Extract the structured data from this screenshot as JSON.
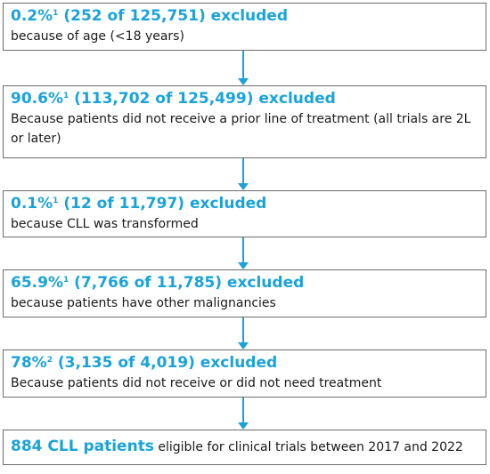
{
  "steps": [
    {
      "headline": "0.2%",
      "sup": "1",
      "headline_rest": " (252 of 125,751) excluded",
      "description": "because of age (<18 years)"
    },
    {
      "headline": "90.6%",
      "sup": "1",
      "headline_rest": " (113,702 of 125,499) excluded",
      "description": "Because patients did not receive a prior line of treatment (all trials are 2L or later)"
    },
    {
      "headline": "0.1%",
      "sup": "1",
      "headline_rest": " (12 of 11,797) excluded",
      "description": "because CLL was transformed"
    },
    {
      "headline": "65.9%",
      "sup": "1",
      "headline_rest": " (7,766 of 11,785) excluded",
      "description": "because patients have other malignancies"
    },
    {
      "headline": "78%",
      "sup": "2",
      "headline_rest": " (3,135 of 4,019) excluded",
      "description": "Because patients did not receive or did not need treatment"
    }
  ],
  "final": {
    "headline": "884 CLL patients",
    "description": " eligible for clinical trials between 2017 and 2022"
  },
  "colors": {
    "accent": "#1aa3d9",
    "text": "#1a1a1a",
    "border": "#6b6b6b"
  }
}
